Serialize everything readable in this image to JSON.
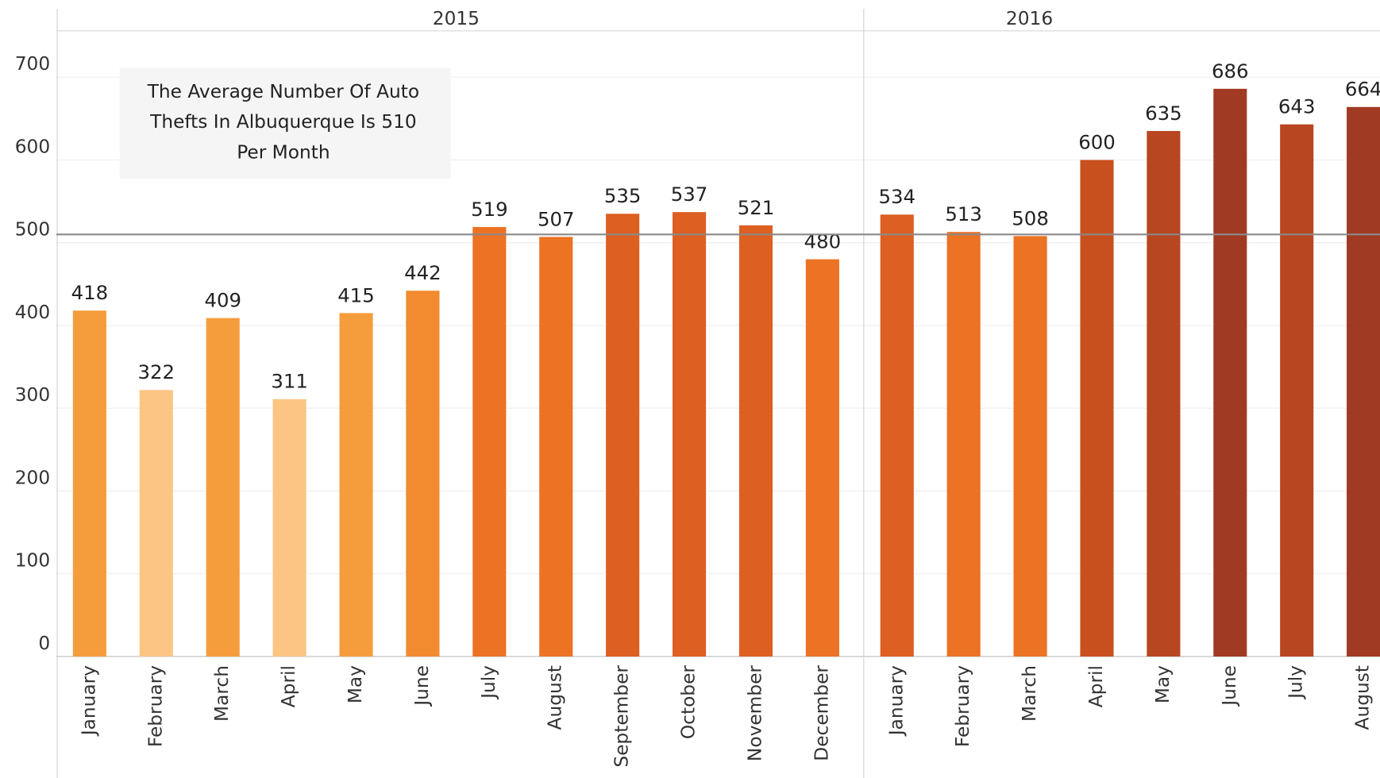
{
  "chart_data": {
    "type": "bar",
    "ylim": [
      0,
      756
    ],
    "yticks": [
      0,
      100,
      200,
      300,
      400,
      500,
      600,
      700
    ],
    "grid": true,
    "reference_line": 510,
    "annotation": [
      "The Average Number Of Auto",
      "Thefts In Albuquerque Is 510",
      "Per Month"
    ],
    "facets": [
      {
        "title": "2015",
        "categories": [
          "January",
          "February",
          "March",
          "April",
          "May",
          "June",
          "July",
          "August",
          "September",
          "October",
          "November",
          "December"
        ],
        "values": [
          418,
          322,
          409,
          311,
          415,
          442,
          519,
          507,
          535,
          537,
          521,
          480
        ],
        "colors": [
          "#f59d3d",
          "#fdc584",
          "#f59d3d",
          "#fdc584",
          "#f59d3d",
          "#f28a30",
          "#ec7224",
          "#ec7224",
          "#dd5f21",
          "#dd5f21",
          "#dd5f21",
          "#ec7224"
        ]
      },
      {
        "title": "2016",
        "categories": [
          "January",
          "February",
          "March",
          "April",
          "May",
          "June",
          "July",
          "August"
        ],
        "values": [
          534,
          513,
          508,
          600,
          635,
          686,
          643,
          664
        ],
        "colors": [
          "#dd5f21",
          "#ec7224",
          "#ec7224",
          "#c8501f",
          "#b84620",
          "#a03a22",
          "#b84620",
          "#a03a22"
        ]
      }
    ]
  }
}
